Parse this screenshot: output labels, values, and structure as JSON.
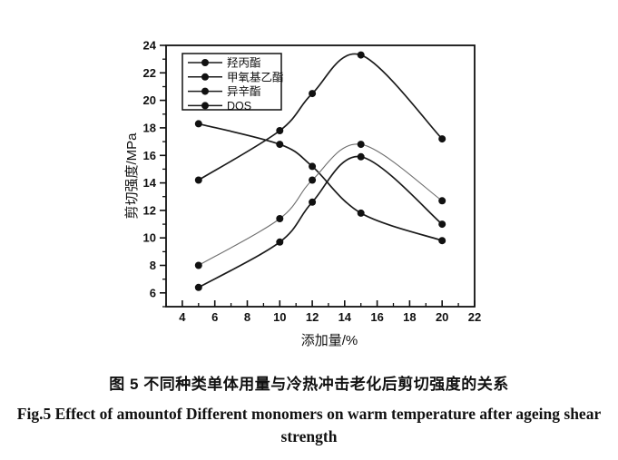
{
  "figure": {
    "caption_zh": "图 5 不同种类单体用量与冷热冲击老化后剪切强度的关系",
    "caption_en_line1": "Fig.5 Effect of amountof Different monomers on warm temperature after ageing shear",
    "caption_en_line2": "strength"
  },
  "chart_data": {
    "type": "line",
    "title": "",
    "xlabel": "添加量/%",
    "ylabel": "剪切强度/MPa",
    "x": [
      5,
      10,
      12,
      15,
      20
    ],
    "series": [
      {
        "name": "羟丙酯",
        "values": [
          14.2,
          17.8,
          20.5,
          23.3,
          17.2
        ],
        "color": "#1a1a1a",
        "line_width": 1.7
      },
      {
        "name": "甲氧基乙酯",
        "values": [
          18.3,
          16.8,
          15.2,
          11.8,
          9.8
        ],
        "color": "#1a1a1a",
        "line_width": 1.7
      },
      {
        "name": "异辛酯",
        "values": [
          8.0,
          11.4,
          14.2,
          16.8,
          12.7
        ],
        "color": "#6e6e6e",
        "line_width": 1.1
      },
      {
        "name": "DOS",
        "values": [
          6.4,
          9.7,
          12.6,
          15.9,
          11.0
        ],
        "color": "#1a1a1a",
        "line_width": 1.7
      }
    ],
    "xlim": [
      3,
      22
    ],
    "ylim": [
      5,
      24
    ],
    "xticks": [
      4,
      6,
      8,
      10,
      12,
      14,
      16,
      18,
      20,
      22
    ],
    "yticks": [
      6,
      8,
      10,
      12,
      14,
      16,
      18,
      20,
      22,
      24
    ],
    "minor_tick_step": 1,
    "grid": false,
    "marker": "filled-circle",
    "marker_radius": 4,
    "legend_position": "upper-left",
    "axis_color": "#111111"
  }
}
